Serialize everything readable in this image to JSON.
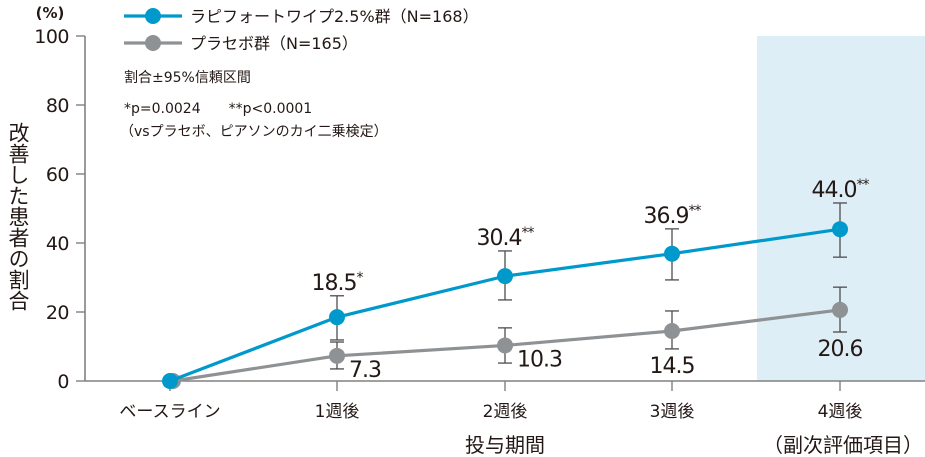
{
  "chart_data": {
    "type": "line",
    "title": "",
    "xlabel": "投与期間",
    "ylabel": "改善した患者の割合",
    "yunit": "(%)",
    "categories": [
      "ベースライン",
      "1週後",
      "2週後",
      "3週後",
      "4週後"
    ],
    "ylim": [
      0,
      100
    ],
    "yticks": [
      0,
      20,
      40,
      60,
      80,
      100
    ],
    "grid": false,
    "legend_position": "top-left",
    "error_bars": "割合±95%信頼区間",
    "series": [
      {
        "name": "ラピフォートワイプ2.5%群（N=168）",
        "color": "#0099cc",
        "values": [
          0,
          18.5,
          30.4,
          36.9,
          44.0
        ],
        "ci_lower": [
          null,
          11.9,
          23.5,
          29.3,
          35.9
        ],
        "ci_upper": [
          null,
          24.7,
          37.7,
          44.1,
          51.6
        ],
        "labels": [
          "",
          "18.5",
          "30.4",
          "36.9",
          "44.0"
        ],
        "significance": [
          "",
          "*",
          "**",
          "**",
          "**"
        ]
      },
      {
        "name": "プラセボ群（N=165）",
        "color": "#8f9294",
        "values": [
          0,
          7.3,
          10.3,
          14.5,
          20.6
        ],
        "ci_lower": [
          null,
          3.5,
          5.2,
          9.3,
          14.2
        ],
        "ci_upper": [
          null,
          11.3,
          15.4,
          20.3,
          27.2
        ],
        "labels": [
          "",
          "7.3",
          "10.3",
          "14.5",
          "20.6"
        ],
        "significance": [
          "",
          "",
          "",
          "",
          ""
        ]
      }
    ],
    "highlight": {
      "category": "4週後",
      "note": "（副次評価項目）",
      "color": "#ddeef6"
    },
    "annotations": {
      "ci_note": "割合±95%信頼区間",
      "p_values": "*p=0.0024　　**p<0.0001",
      "test_note": "（vsプラセボ、ピアソンのカイ二乗検定）"
    }
  },
  "colors": {
    "axis": "#808080",
    "error_bar": "#4d4d4d",
    "text": "#231815"
  }
}
